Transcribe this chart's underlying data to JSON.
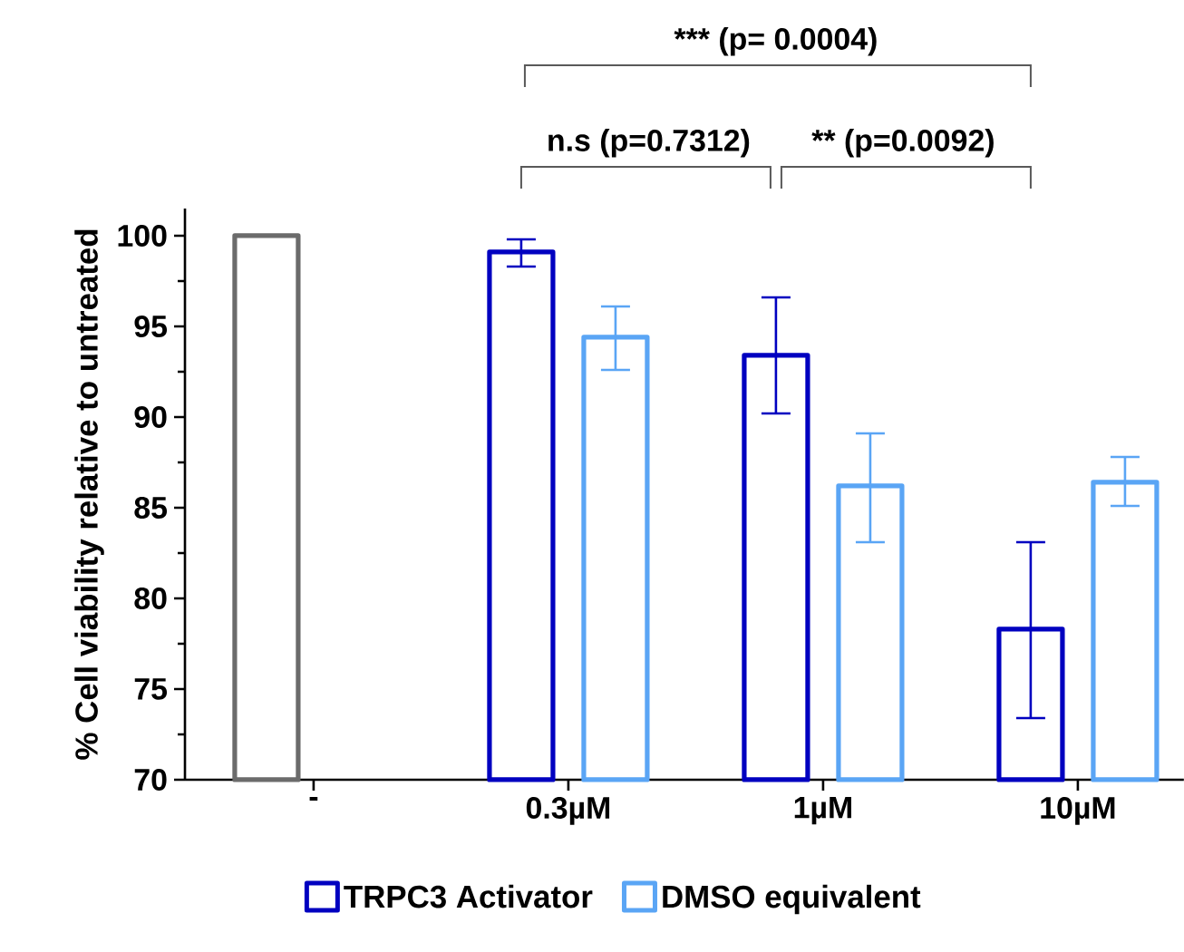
{
  "chart_data": {
    "type": "bar",
    "ylabel": "% Cell viability relative to untreated",
    "categories": [
      "-",
      "0.3µM",
      "1µM",
      "10µM"
    ],
    "series": [
      {
        "color": "#6b6b6b",
        "values": [
          100,
          null,
          null,
          null
        ]
      },
      {
        "name": "TRPC3 Activator",
        "color": "#0000c0",
        "values": [
          null,
          99.1,
          93.4,
          78.3
        ],
        "errors": [
          null,
          [
            98.3,
            99.8
          ],
          [
            90.2,
            96.6
          ],
          [
            73.4,
            83.1
          ]
        ]
      },
      {
        "name": "DMSO equivalent",
        "color": "#5aa5f5",
        "values": [
          null,
          94.4,
          86.2,
          86.4
        ],
        "errors": [
          null,
          [
            92.6,
            96.1
          ],
          [
            83.1,
            89.1
          ],
          [
            85.1,
            87.8
          ]
        ]
      }
    ],
    "ylim": [
      70,
      101.5
    ],
    "yticks": [
      70,
      75,
      80,
      85,
      90,
      95,
      100
    ],
    "legend": "bottom",
    "annotations": [
      "*** (p= 0.0004)",
      "n.s (p=0.7312)",
      "** (p=0.0092)"
    ]
  }
}
